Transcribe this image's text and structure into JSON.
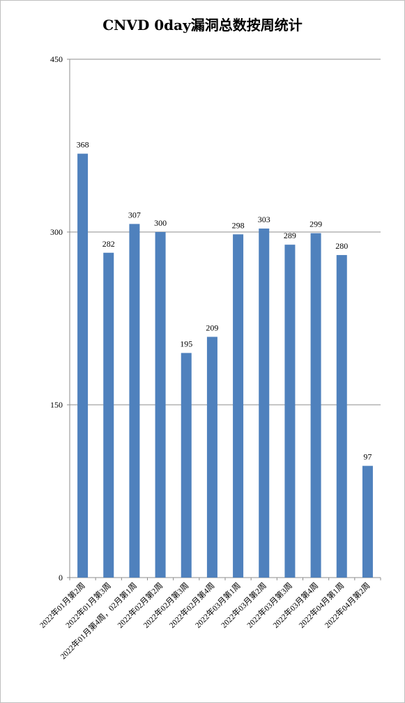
{
  "chart_data": {
    "type": "bar",
    "title": "CNVD 0day漏洞总数按周统计",
    "categories": [
      "2022年01月第2周",
      "2022年01月第3周",
      "2022年01月第4周，02月第1周",
      "2022年02月第2周",
      "2022年02月第3周",
      "2022年02月第4周",
      "2022年03月第1周",
      "2022年03月第2周",
      "2022年03月第3周",
      "2022年03月第4周",
      "2022年04月第1周",
      "2022年04月第2周"
    ],
    "values": [
      368,
      282,
      307,
      300,
      195,
      209,
      298,
      303,
      289,
      299,
      280,
      97
    ],
    "yticks": [
      0,
      150,
      300,
      450
    ],
    "ylim": [
      0,
      450
    ],
    "grid": true,
    "legend": "none",
    "bar_color": "#4f81bd"
  }
}
